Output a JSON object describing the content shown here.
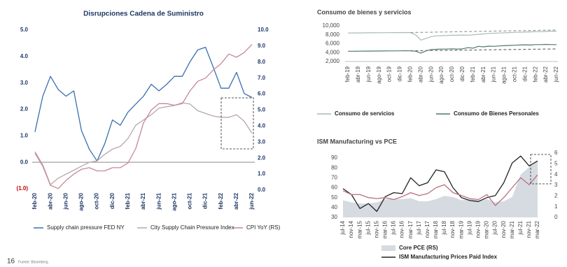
{
  "chart_data": [
    {
      "type": "line",
      "title": "Disrupciones Cadena de Suministro",
      "categories": [
        "feb-20",
        null,
        "abr-20",
        null,
        "jun-20",
        null,
        "ago-20",
        null,
        "oct-20",
        null,
        "dic-20",
        null,
        "feb-21",
        null,
        "abr-21",
        null,
        "jun-21",
        null,
        "ago-21",
        null,
        "oct-21",
        null,
        "dic-21",
        null,
        "feb-22",
        null,
        "abr-22",
        null,
        "jun-22"
      ],
      "series": [
        {
          "name": "Supply chain pressure FED NY",
          "color": "#3a6fb0",
          "values": [
            1.15,
            2.5,
            3.25,
            2.75,
            2.5,
            2.7,
            1.2,
            0.5,
            0.05,
            0.7,
            1.6,
            1.4,
            1.9,
            2.2,
            2.5,
            2.95,
            2.7,
            2.95,
            3.25,
            3.25,
            3.8,
            4.25,
            4.35,
            3.6,
            2.8,
            2.8,
            3.4,
            2.6,
            2.45
          ]
        },
        {
          "name": "City Supply Chain Pressure Index",
          "color": "#b9a7ad",
          "values": [
            0.4,
            -0.1,
            -0.85,
            -0.6,
            -0.45,
            -0.3,
            -0.15,
            0.0,
            0.05,
            0.3,
            0.5,
            0.6,
            0.9,
            1.4,
            1.6,
            1.8,
            2.05,
            2.1,
            2.15,
            2.25,
            2.2,
            1.95,
            1.85,
            1.75,
            1.7,
            1.7,
            1.8,
            1.55,
            1.1
          ]
        },
        {
          "name": "CPI YoY (RS)",
          "color": "#c98894",
          "axis": "y2",
          "values": [
            2.3,
            1.5,
            0.3,
            0.1,
            0.6,
            1.0,
            1.3,
            1.4,
            1.2,
            1.2,
            1.4,
            1.4,
            1.7,
            2.6,
            4.2,
            5.0,
            5.4,
            5.4,
            5.3,
            5.4,
            6.2,
            6.8,
            7.0,
            7.5,
            7.9,
            8.5,
            8.3,
            8.6,
            9.1
          ]
        }
      ],
      "ylim": [
        -1,
        5
      ],
      "yticks": [
        {
          "value": 5,
          "label": "5.0"
        },
        {
          "value": 4,
          "label": "4.0"
        },
        {
          "value": 3,
          "label": "3.0"
        },
        {
          "value": 2,
          "label": "2.0"
        },
        {
          "value": 1,
          "label": "1.0"
        },
        {
          "value": 0,
          "label": "0.0"
        },
        {
          "value": -1,
          "label": "(1.0)",
          "color": "#c00000"
        }
      ],
      "y2lim": [
        0,
        10
      ],
      "y2ticks": [
        {
          "value": 10,
          "label": "10.0"
        },
        {
          "value": 9,
          "label": "9.0"
        },
        {
          "value": 8,
          "label": "8.0"
        },
        {
          "value": 7,
          "label": "7.0"
        },
        {
          "value": 6,
          "label": "6.0"
        },
        {
          "value": 5,
          "label": "5.0"
        },
        {
          "value": 4,
          "label": "4.0"
        },
        {
          "value": 3,
          "label": "3.0"
        },
        {
          "value": 2,
          "label": "2.0"
        },
        {
          "value": 1,
          "label": "1.0"
        },
        {
          "value": 0,
          "label": "0.0"
        }
      ],
      "zero_line": true,
      "legend": "bottom"
    },
    {
      "type": "line",
      "title": "Consumo de bienes y servicios",
      "categories": [
        "feb-19",
        null,
        "abr-19",
        null,
        "jun-19",
        null,
        "ago-19",
        null,
        "oct-19",
        null,
        "dic-19",
        null,
        "feb-20",
        null,
        "abr-20",
        null,
        "jun-20",
        null,
        "ago-20",
        null,
        "oct-20",
        null,
        "dic-20",
        null,
        "feb-21",
        null,
        "abr-21",
        null,
        "jun-21",
        null,
        "ago-21",
        null,
        "oct-21",
        null,
        "dic-21",
        null,
        "feb-22",
        null,
        "abr-22",
        null,
        "jun-22"
      ],
      "series": [
        {
          "name": "Consumo de servicios",
          "color": "#a9bcb3",
          "values": [
            8400,
            8410,
            8420,
            8430,
            8440,
            8450,
            8460,
            8470,
            8480,
            8490,
            8500,
            8510,
            8500,
            8000,
            6800,
            7200,
            7600,
            7750,
            7800,
            7850,
            7900,
            7900,
            7950,
            7900,
            8000,
            8100,
            8200,
            8300,
            8350,
            8400,
            8450,
            8500,
            8550,
            8550,
            8600,
            8650,
            8700,
            8700,
            8750,
            8800,
            8800
          ]
        },
        {
          "name": "Consumo de Bienes Personales",
          "color": "#4d7a68",
          "values": [
            4300,
            4310,
            4320,
            4330,
            4340,
            4350,
            4360,
            4370,
            4380,
            4390,
            4400,
            4410,
            4400,
            4300,
            3900,
            4400,
            4700,
            4750,
            4800,
            4800,
            4850,
            4800,
            4850,
            5100,
            5000,
            5400,
            5300,
            5450,
            5400,
            5500,
            5550,
            5600,
            5650,
            5700,
            5750,
            5700,
            5800,
            5800,
            5850,
            5800,
            5800
          ]
        },
        {
          "color": "#9a9a9a",
          "dash": true,
          "values": [
            null,
            null,
            null,
            null,
            null,
            null,
            null,
            null,
            null,
            null,
            null,
            null,
            8500,
            8520,
            8540,
            8560,
            8580,
            8600,
            8620,
            8640,
            8660,
            8680,
            8700,
            8720,
            8740,
            8760,
            8780,
            8800,
            8820,
            8840,
            8860,
            8880,
            8900,
            8920,
            8940,
            8960,
            8980,
            9000,
            9020,
            9040,
            9060
          ]
        },
        {
          "color": "#6b6b6b",
          "dash": true,
          "values": [
            null,
            null,
            null,
            null,
            null,
            null,
            null,
            null,
            null,
            null,
            null,
            null,
            4400,
            4415,
            4430,
            4445,
            4460,
            4475,
            4490,
            4505,
            4520,
            4535,
            4550,
            4565,
            4580,
            4595,
            4610,
            4625,
            4640,
            4655,
            4670,
            4685,
            4700,
            4715,
            4730,
            4745,
            4760,
            4775,
            4790,
            4805,
            4820
          ]
        }
      ],
      "ylim": [
        2000,
        10000
      ],
      "yticks": [
        {
          "value": 10000,
          "label": "10,000"
        },
        {
          "value": 8000,
          "label": "8,000"
        },
        {
          "value": 6000,
          "label": "6,000"
        },
        {
          "value": 4000,
          "label": "4,000"
        },
        {
          "value": 2000,
          "label": "2,000"
        }
      ],
      "legend": "bottom"
    },
    {
      "type": "line",
      "title": "ISM Manufacturing vs PCE",
      "categories": [
        "jul-14",
        "nov-14",
        "mar-15",
        "jul-15",
        "nov-15",
        "mar-16",
        "jul-16",
        "nov-16",
        "mar-17",
        "jul-17",
        "nov-17",
        "mar-18",
        "jul-18",
        "nov-18",
        "mar-19",
        "jul-19",
        "nov-19",
        "mar-20",
        "jul-20",
        "nov-20",
        "mar-21",
        "jul-21",
        "nov-21",
        "mar-22"
      ],
      "series": [
        {
          "name": "Core PCE (RS)",
          "type": "area",
          "axis": "y2",
          "color": "#d5dbe0",
          "values": [
            1.6,
            1.4,
            1.3,
            1.3,
            1.4,
            1.7,
            1.7,
            1.7,
            1.8,
            1.5,
            1.5,
            1.7,
            2.0,
            1.9,
            1.6,
            1.7,
            1.6,
            1.7,
            1.4,
            1.5,
            1.9,
            4.0,
            4.7,
            5.3
          ]
        },
        {
          "name": "ISM Manufacturing Prices Paid Index",
          "color": "#222222",
          "values": [
            59,
            53,
            39,
            44,
            36,
            51,
            55,
            54,
            70,
            62,
            65,
            78,
            76,
            60,
            50,
            47,
            46,
            50,
            52,
            65,
            85,
            92,
            82,
            87
          ]
        },
        {
          "color": "#b8707e",
          "values": [
            57,
            53,
            53,
            50,
            49,
            50,
            48,
            51,
            55,
            52,
            54,
            60,
            63,
            55,
            52,
            49,
            48,
            53,
            42,
            50,
            60,
            70,
            63,
            73
          ]
        }
      ],
      "ylim": [
        30,
        90
      ],
      "yticks": [
        90,
        80,
        70,
        60,
        50,
        40,
        30
      ],
      "y2lim": [
        0,
        6
      ],
      "y2ticks": [
        6,
        5,
        4,
        3,
        2,
        1,
        0
      ],
      "legend": "bottom"
    }
  ],
  "page_number": "16",
  "source": "Fuente: Bloomberg."
}
